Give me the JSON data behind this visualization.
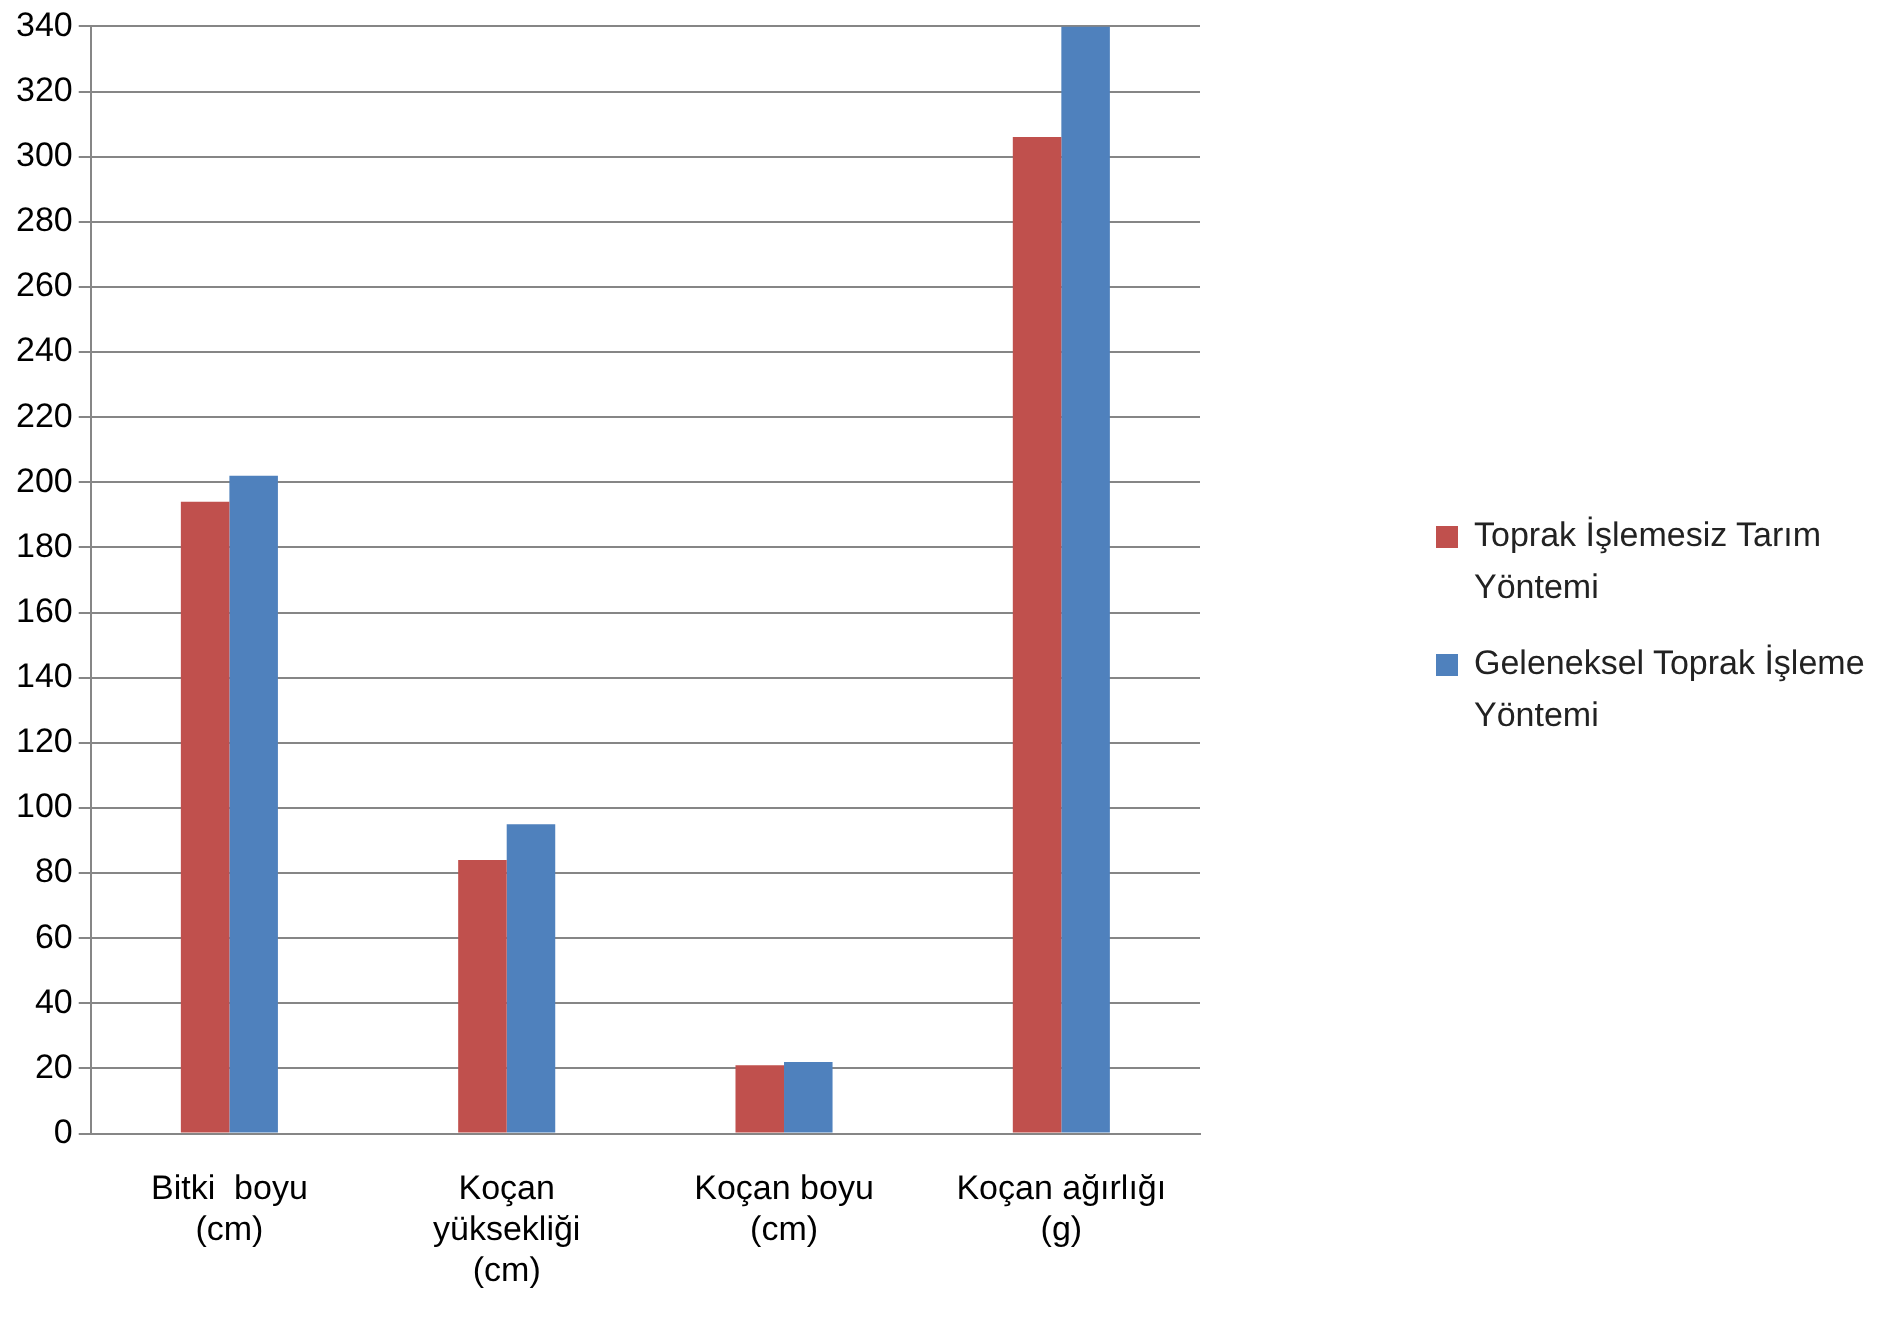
{
  "chart_data": {
    "type": "bar",
    "categories": [
      "Bitki  boyu (cm)",
      "Koçan yüksekliği (cm)",
      "Koçan boyu (cm)",
      "Koçan ağırlığı (g)"
    ],
    "series": [
      {
        "name": "Toprak İşlemesiz Tarım Yöntemi",
        "color": "#c0504d",
        "values": [
          194,
          84,
          21,
          306
        ]
      },
      {
        "name": "Geleneksel Toprak İşleme Yöntemi",
        "color": "#4f81bd",
        "values": [
          202,
          95,
          22,
          340
        ]
      }
    ],
    "ylim": [
      0,
      340
    ],
    "yticks": [
      0,
      20,
      40,
      60,
      80,
      100,
      120,
      140,
      160,
      180,
      200,
      220,
      240,
      260,
      280,
      300,
      320,
      340
    ],
    "grid": "y",
    "legend": "right"
  }
}
